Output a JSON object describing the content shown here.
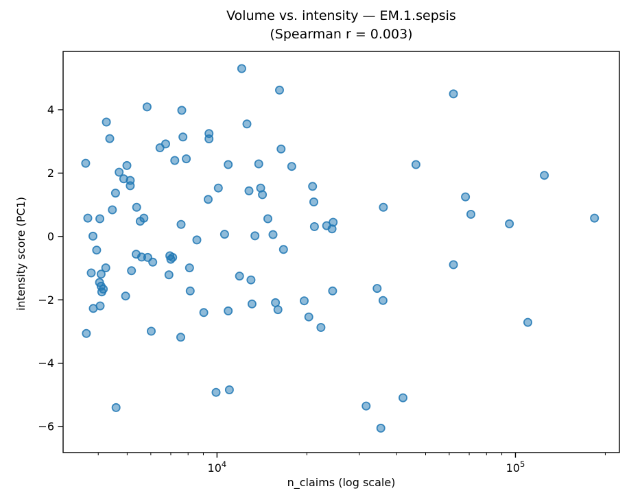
{
  "figure": {
    "title_line1": "Volume vs. intensity — EM.1.sepsis",
    "title_line2": "(Spearman r = 0.003)",
    "background": "#ffffff",
    "text_color": "#000000",
    "spine_color": "#000000"
  },
  "chart_data": {
    "type": "scatter",
    "title": "Volume vs. intensity — EM.1.sepsis (Spearman r = 0.003)",
    "subtitle_stat": "Spearman r = 0.003",
    "xlabel": "n_claims (log scale)",
    "ylabel": "intensity score (PC1)",
    "x_scale": "log",
    "xlim": [
      3050,
      223000
    ],
    "ylim": [
      -6.82,
      5.84
    ],
    "grid": false,
    "legend": null,
    "x_major_ticks": [
      {
        "value": 10000,
        "base": "10",
        "exp": "4"
      },
      {
        "value": 100000,
        "base": "10",
        "exp": "5"
      }
    ],
    "x_minor_ticks": [
      4000,
      5000,
      6000,
      7000,
      8000,
      9000,
      20000,
      30000,
      40000,
      50000,
      60000,
      70000,
      80000,
      90000,
      200000
    ],
    "y_ticks": [
      -6,
      -4,
      -2,
      0,
      2,
      4
    ],
    "marker": {
      "color": "#1f77b4",
      "fill_opacity": 0.5,
      "edge_opacity": 0.85,
      "radius": 5.6,
      "edge_width": 1.8
    },
    "points": [
      [
        12100,
        5.3
      ],
      [
        16200,
        4.62
      ],
      [
        62000,
        4.5
      ],
      [
        5830,
        4.09
      ],
      [
        7620,
        3.98
      ],
      [
        4260,
        3.61
      ],
      [
        12600,
        3.55
      ],
      [
        4370,
        3.09
      ],
      [
        9400,
        3.25
      ],
      [
        9400,
        3.08
      ],
      [
        7690,
        3.14
      ],
      [
        6730,
        2.92
      ],
      [
        6440,
        2.8
      ],
      [
        16400,
        2.76
      ],
      [
        7220,
        2.4
      ],
      [
        7890,
        2.45
      ],
      [
        3630,
        2.31
      ],
      [
        4990,
        2.24
      ],
      [
        10900,
        2.27
      ],
      [
        46400,
        2.27
      ],
      [
        13800,
        2.29
      ],
      [
        17800,
        2.21
      ],
      [
        4700,
        2.03
      ],
      [
        125000,
        1.93
      ],
      [
        4870,
        1.82
      ],
      [
        5120,
        1.77
      ],
      [
        5120,
        1.6
      ],
      [
        10100,
        1.53
      ],
      [
        12800,
        1.44
      ],
      [
        14000,
        1.53
      ],
      [
        14200,
        1.32
      ],
      [
        4570,
        1.37
      ],
      [
        20900,
        1.58
      ],
      [
        21100,
        1.09
      ],
      [
        9340,
        1.17
      ],
      [
        68000,
        1.25
      ],
      [
        36100,
        0.92
      ],
      [
        5380,
        0.92
      ],
      [
        4460,
        0.84
      ],
      [
        70900,
        0.7
      ],
      [
        14800,
        0.56
      ],
      [
        3690,
        0.58
      ],
      [
        4050,
        0.56
      ],
      [
        5530,
        0.48
      ],
      [
        5690,
        0.58
      ],
      [
        7580,
        0.38
      ],
      [
        21200,
        0.31
      ],
      [
        23300,
        0.34
      ],
      [
        24500,
        0.45
      ],
      [
        24300,
        0.24
      ],
      [
        95400,
        0.4
      ],
      [
        184000,
        0.58
      ],
      [
        3840,
        0.01
      ],
      [
        13400,
        0.02
      ],
      [
        15400,
        0.06
      ],
      [
        10600,
        0.07
      ],
      [
        8560,
        -0.11
      ],
      [
        3950,
        -0.43
      ],
      [
        16700,
        -0.41
      ],
      [
        5360,
        -0.56
      ],
      [
        5590,
        -0.65
      ],
      [
        5860,
        -0.66
      ],
      [
        6090,
        -0.81
      ],
      [
        6950,
        -0.61
      ],
      [
        7100,
        -0.66
      ],
      [
        7000,
        -0.72
      ],
      [
        62000,
        -0.89
      ],
      [
        8090,
        -0.99
      ],
      [
        4240,
        -0.99
      ],
      [
        3790,
        -1.15
      ],
      [
        4090,
        -1.19
      ],
      [
        5170,
        -1.08
      ],
      [
        6900,
        -1.21
      ],
      [
        11900,
        -1.25
      ],
      [
        13000,
        -1.37
      ],
      [
        24400,
        -1.72
      ],
      [
        34400,
        -1.64
      ],
      [
        4040,
        -1.45
      ],
      [
        4090,
        -1.57
      ],
      [
        4160,
        -1.66
      ],
      [
        4110,
        -1.75
      ],
      [
        4940,
        -1.88
      ],
      [
        8130,
        -1.72
      ],
      [
        3850,
        -2.27
      ],
      [
        4060,
        -2.19
      ],
      [
        15700,
        -2.09
      ],
      [
        16000,
        -2.31
      ],
      [
        13100,
        -2.13
      ],
      [
        19600,
        -2.03
      ],
      [
        36000,
        -2.02
      ],
      [
        9030,
        -2.4
      ],
      [
        10900,
        -2.35
      ],
      [
        20300,
        -2.54
      ],
      [
        22300,
        -2.87
      ],
      [
        3650,
        -3.06
      ],
      [
        6020,
        -2.99
      ],
      [
        7560,
        -3.18
      ],
      [
        110000,
        -2.71
      ],
      [
        9930,
        -4.92
      ],
      [
        11000,
        -4.84
      ],
      [
        4590,
        -5.4
      ],
      [
        31600,
        -5.35
      ],
      [
        42000,
        -5.09
      ],
      [
        35400,
        -6.05
      ]
    ]
  }
}
